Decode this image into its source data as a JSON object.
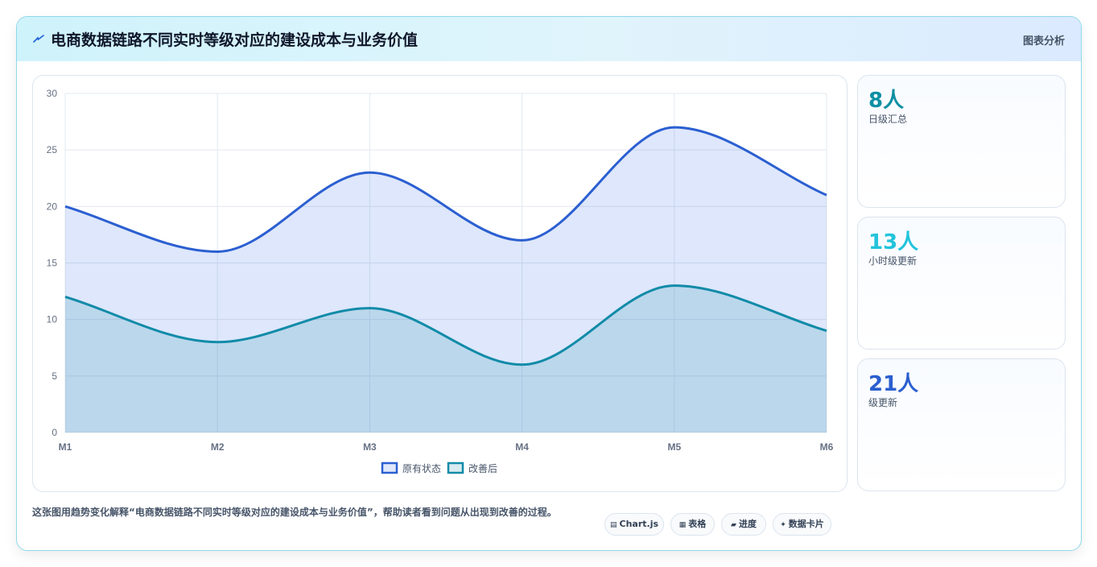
{
  "header": {
    "icon": "lightning-icon",
    "title": "电商数据链路不同实时等级对应的建设成本与业务价值",
    "link_label": "图表分析"
  },
  "stats": [
    {
      "value": "8人",
      "label": "日级汇总",
      "color": "#0e8fa3"
    },
    {
      "value": "13人",
      "label": "小时级更新",
      "color": "#22c3dc"
    },
    {
      "value": "21人",
      "label": "级更新",
      "color": "#2b5fcf"
    }
  ],
  "description": "这张图用趋势变化解释“电商数据链路不同实时等级对应的建设成本与业务价值”，帮助读者看到问题从出现到改善的过程。",
  "chips": [
    {
      "icon": "chart-icon",
      "glyph": "▤",
      "label": "Chart.js"
    },
    {
      "icon": "table-icon",
      "glyph": "▦",
      "label": "表格"
    },
    {
      "icon": "progress-icon",
      "glyph": "▰",
      "label": "进度"
    },
    {
      "icon": "sparkle-icon",
      "glyph": "✦",
      "label": "数据卡片"
    }
  ],
  "chart_data": {
    "type": "area",
    "categories": [
      "M1",
      "M2",
      "M3",
      "M4",
      "M5",
      "M6"
    ],
    "ylim": [
      0,
      30
    ],
    "yticks": [
      "0",
      "5",
      "10",
      "15",
      "20",
      "25",
      "30"
    ],
    "grid": true,
    "legend": "bottom",
    "series": [
      {
        "name": "原有状态",
        "values": [
          20,
          16,
          23,
          17,
          27,
          21
        ],
        "color": "#2b5fd1",
        "fill": "rgba(60,110,230,0.17)"
      },
      {
        "name": "改善后",
        "values": [
          12,
          8,
          11,
          6,
          13,
          9
        ],
        "color": "#118ba8",
        "fill": "rgba(17,139,168,0.17)"
      }
    ]
  }
}
